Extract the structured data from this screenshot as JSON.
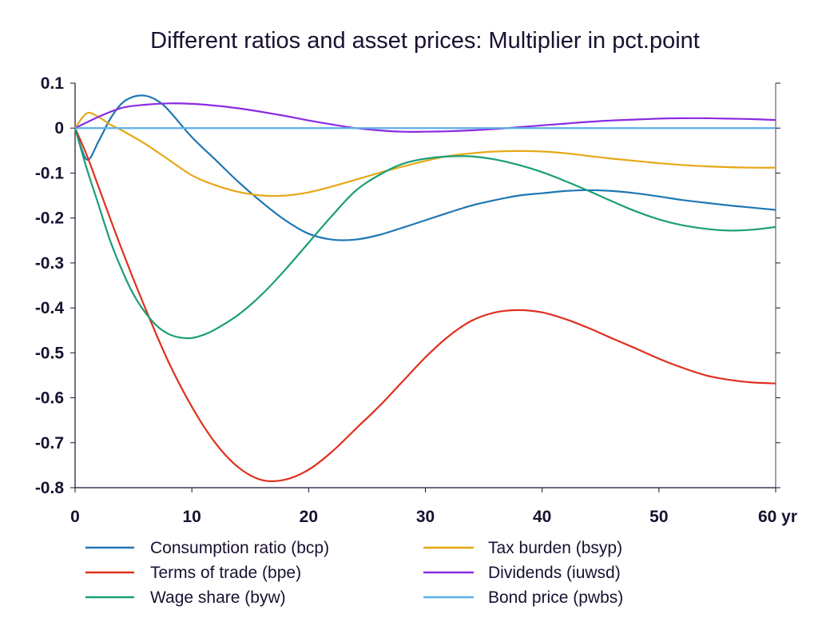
{
  "chart_data": {
    "type": "line",
    "title": "Different ratios and asset prices: Multiplier in pct.point",
    "xlabel": "",
    "ylabel": "",
    "xlim": [
      0,
      60
    ],
    "ylim": [
      -0.8,
      0.1
    ],
    "x_ticks": [
      "0",
      "10",
      "20",
      "30",
      "40",
      "50",
      "60 yr"
    ],
    "y_ticks": [
      "0.1",
      "0",
      "-0.1",
      "-0.2",
      "-0.3",
      "-0.4",
      "-0.5",
      "-0.6",
      "-0.7",
      "-0.8"
    ],
    "grid": false,
    "legend_position": "bottom",
    "series": [
      {
        "name": "Consumption ratio (bcp)",
        "color": "#1f77b4",
        "x": [
          0,
          1,
          2,
          3,
          4,
          5,
          6,
          7,
          8,
          10,
          12,
          14,
          16,
          18,
          20,
          22,
          24,
          26,
          28,
          30,
          32,
          34,
          36,
          38,
          40,
          42,
          44,
          46,
          48,
          50,
          52,
          54,
          56,
          58,
          60
        ],
        "y": [
          0,
          -0.07,
          -0.03,
          0.02,
          0.055,
          0.07,
          0.072,
          0.062,
          0.04,
          -0.02,
          -0.07,
          -0.12,
          -0.165,
          -0.205,
          -0.235,
          -0.248,
          -0.248,
          -0.238,
          -0.222,
          -0.205,
          -0.188,
          -0.172,
          -0.16,
          -0.15,
          -0.145,
          -0.14,
          -0.138,
          -0.14,
          -0.145,
          -0.152,
          -0.16,
          -0.166,
          -0.172,
          -0.177,
          -0.182
        ]
      },
      {
        "name": "Tax burden (bsyp)",
        "color": "#e6a817",
        "x": [
          0,
          1,
          2,
          3,
          4,
          6,
          8,
          10,
          12,
          14,
          16,
          18,
          20,
          22,
          24,
          26,
          28,
          30,
          32,
          34,
          36,
          38,
          40,
          42,
          44,
          46,
          48,
          50,
          52,
          54,
          56,
          58,
          60
        ],
        "y": [
          0,
          0.033,
          0.025,
          0.008,
          -0.005,
          -0.035,
          -0.07,
          -0.105,
          -0.127,
          -0.142,
          -0.15,
          -0.15,
          -0.143,
          -0.13,
          -0.115,
          -0.1,
          -0.086,
          -0.073,
          -0.062,
          -0.056,
          -0.052,
          -0.051,
          -0.052,
          -0.056,
          -0.062,
          -0.068,
          -0.073,
          -0.078,
          -0.082,
          -0.085,
          -0.087,
          -0.088,
          -0.088
        ]
      },
      {
        "name": "Terms of trade (bpe)",
        "color": "#e0301e",
        "x": [
          0,
          1,
          2,
          4,
          6,
          8,
          10,
          12,
          14,
          16,
          18,
          20,
          22,
          24,
          26,
          28,
          30,
          32,
          34,
          36,
          38,
          40,
          42,
          44,
          46,
          48,
          50,
          52,
          54,
          56,
          58,
          60
        ],
        "y": [
          0,
          -0.06,
          -0.13,
          -0.27,
          -0.4,
          -0.52,
          -0.62,
          -0.7,
          -0.755,
          -0.783,
          -0.782,
          -0.76,
          -0.72,
          -0.67,
          -0.62,
          -0.565,
          -0.51,
          -0.463,
          -0.428,
          -0.41,
          -0.405,
          -0.41,
          -0.425,
          -0.445,
          -0.468,
          -0.49,
          -0.513,
          -0.533,
          -0.55,
          -0.56,
          -0.566,
          -0.568
        ]
      },
      {
        "name": "Dividends (iuwsd)",
        "color": "#8a2be2",
        "x": [
          0,
          2,
          4,
          6,
          8,
          10,
          12,
          14,
          16,
          18,
          20,
          22,
          24,
          26,
          28,
          30,
          32,
          34,
          36,
          38,
          40,
          42,
          44,
          46,
          48,
          50,
          52,
          54,
          56,
          58,
          60
        ],
        "y": [
          0,
          0.025,
          0.045,
          0.052,
          0.055,
          0.054,
          0.05,
          0.044,
          0.036,
          0.027,
          0.017,
          0.008,
          0.0,
          -0.005,
          -0.008,
          -0.008,
          -0.007,
          -0.005,
          -0.002,
          0.002,
          0.006,
          0.01,
          0.014,
          0.017,
          0.019,
          0.021,
          0.022,
          0.022,
          0.021,
          0.02,
          0.018
        ]
      },
      {
        "name": "Wage share (byw)",
        "color": "#1a9e77",
        "x": [
          0,
          1,
          2,
          3,
          4,
          5,
          6,
          7,
          8,
          9,
          10,
          11,
          12,
          14,
          16,
          18,
          20,
          22,
          24,
          26,
          28,
          30,
          32,
          34,
          36,
          38,
          40,
          42,
          44,
          46,
          48,
          50,
          52,
          54,
          56,
          58,
          60
        ],
        "y": [
          0,
          -0.09,
          -0.17,
          -0.25,
          -0.315,
          -0.37,
          -0.41,
          -0.44,
          -0.458,
          -0.466,
          -0.467,
          -0.46,
          -0.448,
          -0.415,
          -0.37,
          -0.315,
          -0.255,
          -0.195,
          -0.14,
          -0.105,
          -0.08,
          -0.068,
          -0.063,
          -0.063,
          -0.07,
          -0.082,
          -0.098,
          -0.118,
          -0.14,
          -0.163,
          -0.185,
          -0.203,
          -0.216,
          -0.224,
          -0.228,
          -0.226,
          -0.22
        ]
      },
      {
        "name": "Bond price (pwbs)",
        "color": "#5bb0e8",
        "x": [
          0,
          60
        ],
        "y": [
          0,
          0
        ]
      }
    ]
  },
  "legend": {
    "left": [
      {
        "label": "Consumption ratio (bcp)",
        "color": "#1f77b4"
      },
      {
        "label": "Terms of trade (bpe)",
        "color": "#e0301e"
      },
      {
        "label": "Wage share (byw)",
        "color": "#1a9e77"
      }
    ],
    "right": [
      {
        "label": "Tax burden (bsyp)",
        "color": "#e6a817"
      },
      {
        "label": "Dividends (iuwsd)",
        "color": "#8a2be2"
      },
      {
        "label": "Bond price (pwbs)",
        "color": "#5bb0e8"
      }
    ]
  },
  "zero_line_color": "#0e3a50",
  "axis_color": "#1a1030"
}
